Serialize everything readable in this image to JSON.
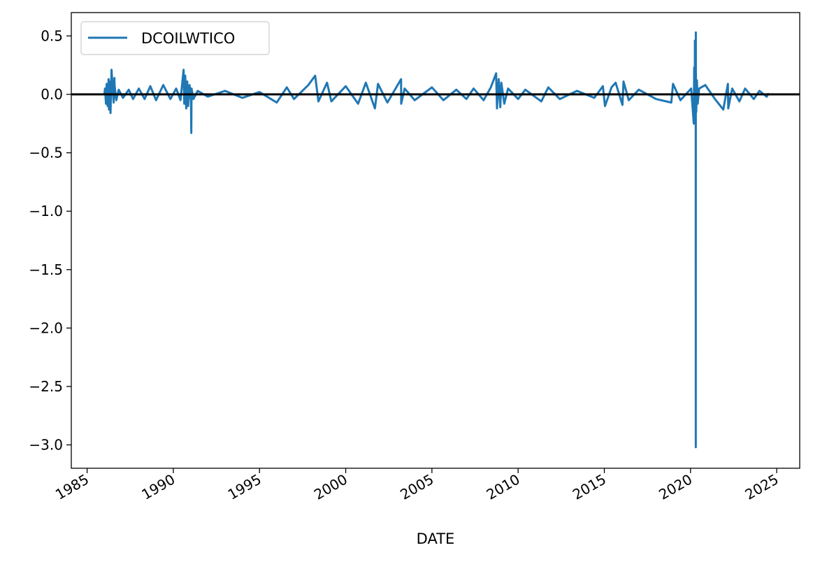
{
  "chart_data": {
    "type": "line",
    "title": "",
    "xlabel": "DATE",
    "ylabel": "",
    "x_tick_labels": [
      "1985",
      "1990",
      "1995",
      "2000",
      "2005",
      "2010",
      "2015",
      "2020",
      "2025"
    ],
    "y_tick_labels": [
      "0.5",
      "0.0",
      "−0.5",
      "−1.0",
      "−1.5",
      "−2.0",
      "−2.5",
      "−3.0"
    ],
    "x_range": [
      "1984-02-01",
      "2026-05-01"
    ],
    "ylim": [
      -3.2,
      0.7
    ],
    "grid": false,
    "legend": {
      "placement": "upper-left",
      "entries": [
        "DCOILWTICO"
      ]
    },
    "reference_line": {
      "y": 0.0,
      "color": "#000000"
    },
    "colors": {
      "series": "#1f77b4",
      "reference": "#000000"
    },
    "series": [
      {
        "name": "DCOILWTICO",
        "x": [
          "1986-01-02",
          "1986-01-15",
          "1986-02-05",
          "1986-02-20",
          "1986-03-10",
          "1986-03-31",
          "1986-04-08",
          "1986-04-20",
          "1986-05-10",
          "1986-06-01",
          "1986-07-15",
          "1986-08-01",
          "1986-08-04",
          "1986-09-10",
          "1986-11-01",
          "1987-02-01",
          "1987-06-01",
          "1987-09-01",
          "1988-01-01",
          "1988-05-01",
          "1988-09-01",
          "1989-01-01",
          "1989-06-01",
          "1989-11-01",
          "1990-03-01",
          "1990-06-01",
          "1990-08-06",
          "1990-08-20",
          "1990-09-10",
          "1990-10-01",
          "1990-10-22",
          "1990-11-10",
          "1990-12-10",
          "1991-01-10",
          "1991-01-17",
          "1991-01-22",
          "1991-03-01",
          "1991-06-01",
          "1992-01-01",
          "1993-01-01",
          "1994-01-01",
          "1995-01-01",
          "1996-01-01",
          "1996-08-01",
          "1997-01-01",
          "1997-11-01",
          "1998-03-23",
          "1998-06-01",
          "1998-12-01",
          "1999-03-01",
          "2000-01-01",
          "2000-09-20",
          "2001-03-01",
          "2001-09-11",
          "2001-11-15",
          "2002-06-01",
          "2003-03-17",
          "2003-03-20",
          "2003-06-01",
          "2004-01-01",
          "2005-01-01",
          "2005-09-01",
          "2006-06-01",
          "2007-01-01",
          "2007-06-01",
          "2008-01-01",
          "2008-06-01",
          "2008-09-22",
          "2008-10-10",
          "2008-11-15",
          "2008-12-19",
          "2009-01-10",
          "2009-03-12",
          "2009-06-01",
          "2010-01-01",
          "2010-06-01",
          "2011-05-05",
          "2011-10-01",
          "2012-06-01",
          "2013-06-01",
          "2014-06-01",
          "2014-12-01",
          "2015-01-15",
          "2015-06-01",
          "2015-08-27",
          "2016-01-20",
          "2016-02-12",
          "2016-06-01",
          "2017-01-01",
          "2018-01-01",
          "2018-11-20",
          "2018-12-26",
          "2019-06-01",
          "2020-01-15",
          "2020-03-09",
          "2020-03-18",
          "2020-04-01",
          "2020-04-02",
          "2020-04-15",
          "2020-04-17",
          "2020-04-20",
          "2020-04-21",
          "2020-04-22",
          "2020-04-23",
          "2020-05-01",
          "2020-05-15",
          "2020-06-01",
          "2020-07-01",
          "2020-11-09",
          "2021-06-01",
          "2021-11-26",
          "2022-03-01",
          "2022-03-09",
          "2022-06-01",
          "2022-11-01",
          "2023-03-01",
          "2023-09-01",
          "2024-01-01",
          "2024-06-01",
          "2024-07-15"
        ],
        "values": [
          0.0,
          0.05,
          -0.08,
          0.09,
          -0.1,
          0.13,
          -0.13,
          0.11,
          -0.16,
          0.21,
          -0.07,
          0.14,
          0.08,
          -0.05,
          0.04,
          -0.03,
          0.04,
          -0.04,
          0.05,
          -0.04,
          0.07,
          -0.05,
          0.08,
          -0.04,
          0.05,
          -0.05,
          0.21,
          -0.08,
          0.16,
          -0.12,
          0.11,
          -0.1,
          0.08,
          -0.05,
          -0.33,
          0.05,
          -0.04,
          0.03,
          -0.02,
          0.03,
          -0.03,
          0.02,
          -0.07,
          0.06,
          -0.04,
          0.08,
          0.16,
          -0.06,
          0.1,
          -0.06,
          0.07,
          -0.08,
          0.1,
          -0.12,
          0.09,
          -0.07,
          0.13,
          -0.08,
          0.05,
          -0.05,
          0.06,
          -0.05,
          0.04,
          -0.04,
          0.05,
          -0.05,
          0.06,
          0.18,
          -0.12,
          0.13,
          -0.11,
          0.1,
          -0.08,
          0.05,
          -0.04,
          0.04,
          -0.06,
          0.06,
          -0.04,
          0.03,
          -0.03,
          0.07,
          -0.1,
          0.06,
          0.1,
          -0.09,
          0.11,
          -0.05,
          0.04,
          -0.04,
          -0.07,
          0.09,
          -0.05,
          0.05,
          -0.25,
          0.23,
          -0.2,
          0.46,
          -0.1,
          -0.08,
          -0.24,
          -3.02,
          0.53,
          0.2,
          -0.15,
          0.12,
          -0.08,
          0.05,
          0.08,
          -0.04,
          -0.13,
          0.09,
          -0.12,
          0.05,
          -0.06,
          0.05,
          -0.04,
          0.03,
          -0.02,
          0.01
        ]
      }
    ]
  }
}
